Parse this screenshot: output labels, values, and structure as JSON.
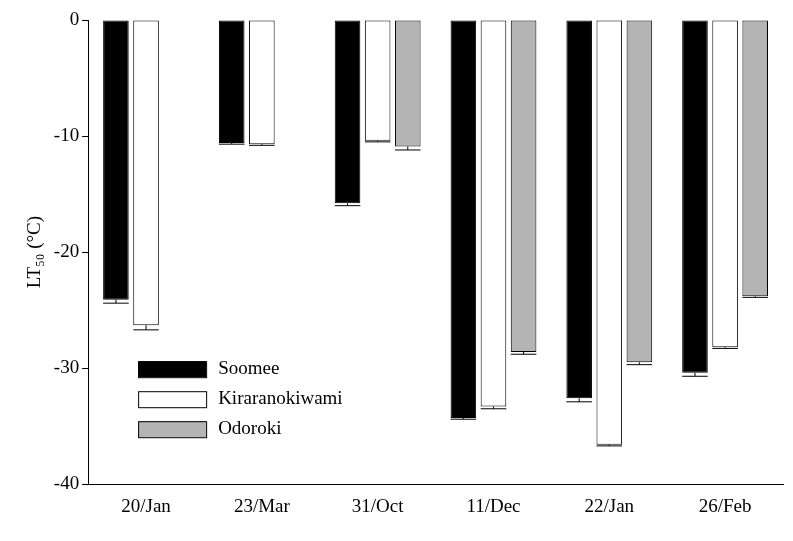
{
  "chart_data": {
    "type": "bar",
    "categories": [
      "20/Jan",
      "23/Mar",
      "31/Oct",
      "11/Dec",
      "22/Jan",
      "26/Feb"
    ],
    "series": [
      {
        "name": "Soomee",
        "color": "#000000",
        "values": [
          -24.1,
          -10.6,
          -15.8,
          -34.3,
          -32.6,
          -30.4
        ],
        "errors": [
          0.3,
          0.1,
          0.2,
          0.1,
          0.3,
          0.3
        ]
      },
      {
        "name": "Kiraranokiwami",
        "color": "#ffffff",
        "values": [
          -26.3,
          -10.7,
          -10.4,
          -33.3,
          -36.6,
          -28.2
        ],
        "errors": [
          0.4,
          0.1,
          0.1,
          0.2,
          0.1,
          0.1
        ]
      },
      {
        "name": "Odoroki",
        "color": "#b4b4b4",
        "values": [
          null,
          null,
          -10.9,
          -28.6,
          -29.5,
          -23.8
        ],
        "errors": [
          null,
          null,
          0.3,
          0.2,
          0.2,
          0.1
        ]
      }
    ],
    "ylabel": "LT₅₀ (°C)",
    "ylim": [
      -40,
      0
    ],
    "yticks": [
      -40,
      -30,
      -20,
      -10,
      0
    ],
    "grid": false,
    "legend": "lower left"
  }
}
